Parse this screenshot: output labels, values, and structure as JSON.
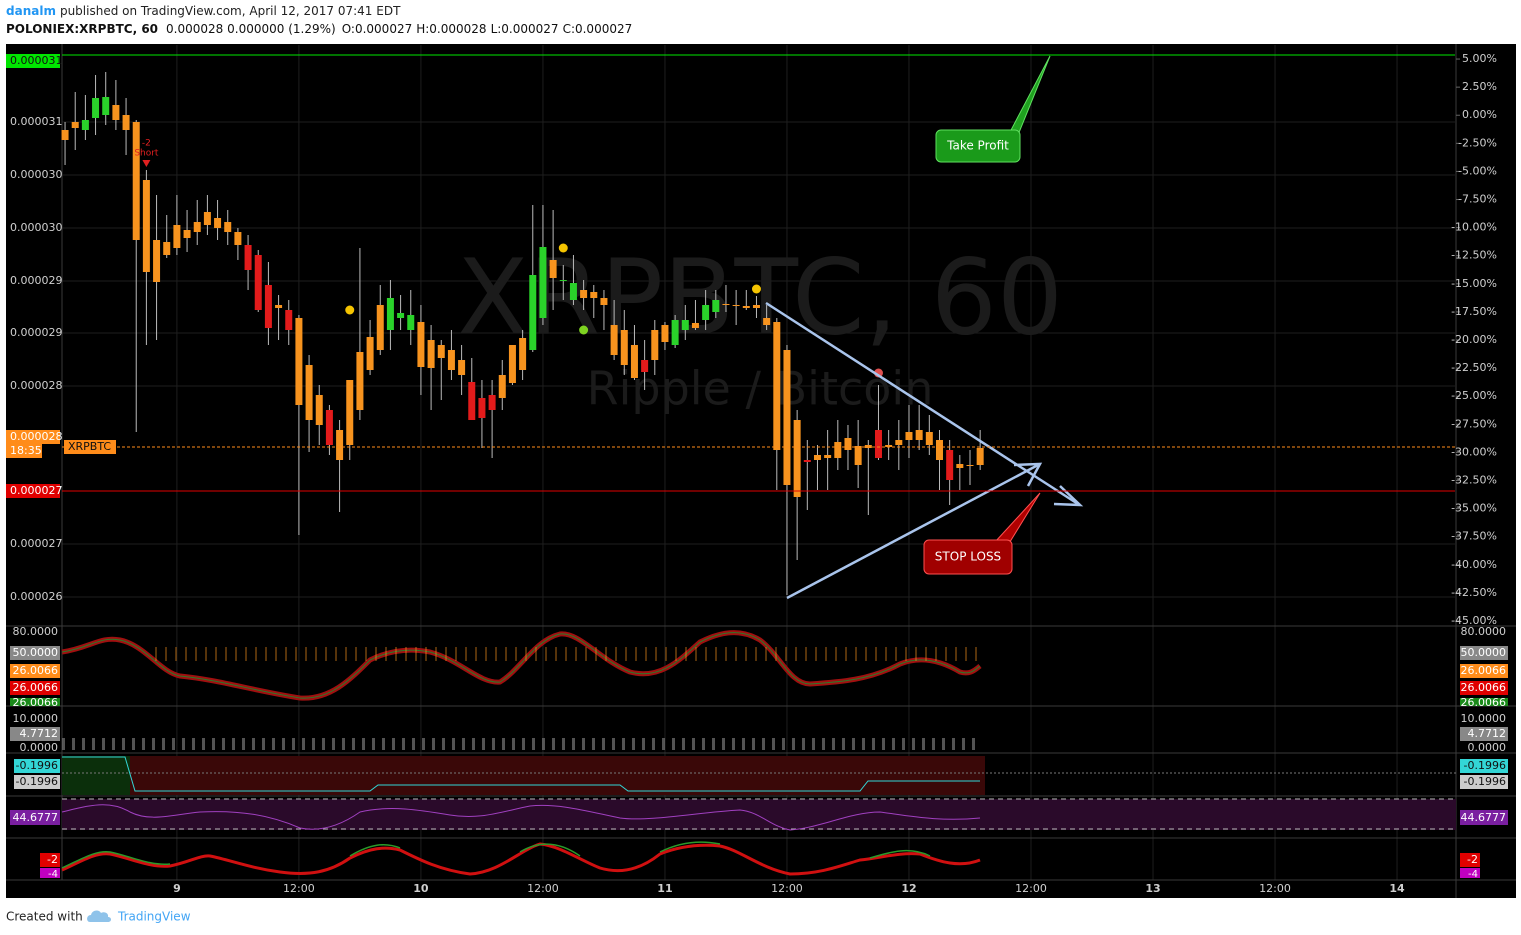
{
  "header": {
    "author": "danalm",
    "published": "published on TradingView.com, April 12, 2017 07:41 EDT"
  },
  "chart_data": {
    "type": "candlestick",
    "symbol": "POLONIEX:XRPBTC, 60",
    "quote": "0.000028 0.000000 (1.29%)",
    "ohlc": [
      "O:0.000027",
      "H:0.000028",
      "L:0.000027",
      "C:0.000027"
    ],
    "watermark": "XRPBTC, 60",
    "watermark_subtitle": "Ripple / Bitcoin",
    "x": [
      13,
      14,
      15,
      16,
      17,
      18,
      19,
      20,
      21,
      22,
      23,
      24,
      25,
      26,
      27,
      28,
      29,
      30,
      31,
      32,
      33,
      34,
      35,
      36,
      37,
      38,
      39,
      40,
      41,
      42,
      43,
      44,
      45,
      46,
      47,
      48,
      49,
      50,
      51,
      52,
      53,
      54,
      55,
      56,
      57,
      58,
      59,
      60,
      61,
      62,
      63,
      64,
      65,
      66,
      67,
      68,
      69,
      70,
      71,
      72,
      73,
      74,
      75,
      76,
      77,
      78,
      79,
      80,
      81,
      82,
      83,
      84,
      85,
      86,
      87,
      88,
      89,
      90,
      91,
      92,
      93,
      94,
      95,
      96,
      97,
      98,
      99,
      100,
      101,
      102,
      103
    ],
    "open": [
      3.062e-05,
      3.074e-05,
      3.072e-05,
      3.084e-05,
      3.087e-05,
      3.097e-05,
      3.087e-05,
      3.08e-05,
      3.022e-05,
      2.962e-05,
      2.96e-05,
      2.977e-05,
      2.964e-05,
      2.97e-05,
      2.99e-05,
      2.984e-05,
      2.98e-05,
      2.97e-05,
      2.957e-05,
      2.947e-05,
      2.917e-05,
      2.894e-05,
      2.892e-05,
      2.884e-05,
      2.837e-05,
      2.807e-05,
      2.792e-05,
      2.772e-05,
      2.757e-05,
      2.792e-05,
      2.832e-05,
      2.852e-05,
      2.872e-05,
      2.884e-05,
      2.872e-05,
      2.88e-05,
      2.862e-05,
      2.857e-05,
      2.852e-05,
      2.842e-05,
      2.82e-05,
      2.804e-05,
      2.807e-05,
      2.804e-05,
      2.819e-05,
      2.832e-05,
      2.852e-05,
      2.884e-05,
      2.942e-05,
      2.922e-05,
      2.902e-05,
      2.912e-05,
      2.904e-05,
      2.904e-05,
      2.877e-05,
      2.872e-05,
      2.857e-05,
      2.842e-05,
      2.842e-05,
      2.86e-05,
      2.857e-05,
      2.872e-05,
      2.879e-05,
      2.882e-05,
      2.89e-05,
      2.897e-05,
      2.896e-05,
      2.896e-05,
      2.894e-05,
      2.884e-05,
      2.88e-05,
      2.852e-05,
      2.782e-05,
      2.742e-05,
      2.747e-05,
      2.744e-05,
      2.76e-05,
      2.764e-05,
      2.756e-05,
      2.754e-05,
      2.772e-05,
      2.755e-05,
      2.757e-05,
      2.762e-05,
      2.772e-05,
      2.77e-05,
      2.762e-05,
      2.752e-05,
      2.734e-05,
      2.736e-05,
      2.754e-05
    ],
    "high": [
      3.08e-05,
      3.11e-05,
      3.107e-05,
      3.127e-05,
      3.13e-05,
      3.122e-05,
      3.104e-05,
      3.082e-05,
      3.032e-05,
      3.007e-05,
      2.987e-05,
      3.007e-05,
      2.992e-05,
      3.002e-05,
      3.007e-05,
      3.002e-05,
      2.992e-05,
      2.974e-05,
      2.967e-05,
      2.952e-05,
      2.94e-05,
      2.907e-05,
      2.902e-05,
      2.887e-05,
      2.847e-05,
      2.817e-05,
      2.797e-05,
      2.782e-05,
      2.822e-05,
      2.954e-05,
      2.882e-05,
      2.917e-05,
      2.922e-05,
      2.907e-05,
      2.912e-05,
      2.897e-05,
      2.877e-05,
      2.862e-05,
      2.872e-05,
      2.857e-05,
      2.844e-05,
      2.822e-05,
      2.822e-05,
      2.842e-05,
      2.857e-05,
      2.872e-05,
      2.997e-05,
      2.997e-05,
      2.992e-05,
      2.937e-05,
      2.947e-05,
      2.922e-05,
      2.917e-05,
      2.912e-05,
      2.902e-05,
      2.892e-05,
      2.877e-05,
      2.862e-05,
      2.882e-05,
      2.88e-05,
      2.887e-05,
      2.897e-05,
      2.902e-05,
      2.912e-05,
      2.912e-05,
      2.917e-05,
      2.912e-05,
      2.912e-05,
      2.906e-05,
      2.897e-05,
      2.884e-05,
      2.857e-05,
      2.792e-05,
      2.762e-05,
      2.757e-05,
      2.772e-05,
      2.782e-05,
      2.777e-05,
      2.782e-05,
      2.762e-05,
      2.817e-05,
      2.772e-05,
      2.782e-05,
      2.797e-05,
      2.797e-05,
      2.787e-05,
      2.772e-05,
      2.762e-05,
      2.747e-05,
      2.752e-05,
      2.772e-05
    ],
    "low": [
      3.037e-05,
      3.052e-05,
      3.062e-05,
      3.067e-05,
      3.077e-05,
      3.072e-05,
      3.047e-05,
      2.77e-05,
      2.857e-05,
      2.862e-05,
      2.944e-05,
      2.947e-05,
      2.95e-05,
      2.957e-05,
      2.967e-05,
      2.962e-05,
      2.957e-05,
      2.942e-05,
      2.912e-05,
      2.89e-05,
      2.857e-05,
      2.862e-05,
      2.857e-05,
      2.667e-05,
      2.75e-05,
      2.757e-05,
      2.747e-05,
      2.69e-05,
      2.742e-05,
      2.782e-05,
      2.827e-05,
      2.847e-05,
      2.852e-05,
      2.872e-05,
      2.857e-05,
      2.807e-05,
      2.792e-05,
      2.802e-05,
      2.822e-05,
      2.807e-05,
      2.782e-05,
      2.754e-05,
      2.744e-05,
      2.792e-05,
      2.817e-05,
      2.822e-05,
      2.85e-05,
      2.877e-05,
      2.892e-05,
      2.902e-05,
      2.897e-05,
      2.892e-05,
      2.884e-05,
      2.872e-05,
      2.842e-05,
      2.827e-05,
      2.822e-05,
      2.812e-05,
      2.827e-05,
      2.852e-05,
      2.854e-05,
      2.862e-05,
      2.872e-05,
      2.872e-05,
      2.884e-05,
      2.89e-05,
      2.877e-05,
      2.892e-05,
      2.884e-05,
      2.872e-05,
      2.712e-05,
      2.607e-05,
      2.642e-05,
      2.692e-05,
      2.712e-05,
      2.712e-05,
      2.732e-05,
      2.732e-05,
      2.714e-05,
      2.687e-05,
      2.742e-05,
      2.742e-05,
      2.732e-05,
      2.744e-05,
      2.752e-05,
      2.747e-05,
      2.712e-05,
      2.697e-05,
      2.712e-05,
      2.717e-05,
      2.732e-05
    ],
    "close": [
      3.072e-05,
      3.08e-05,
      3.082e-05,
      3.104e-05,
      3.105e-05,
      3.082e-05,
      3.072e-05,
      2.962e-05,
      2.93e-05,
      2.92e-05,
      2.947e-05,
      2.954e-05,
      2.972e-05,
      2.98e-05,
      2.977e-05,
      2.974e-05,
      2.97e-05,
      2.957e-05,
      2.932e-05,
      2.892e-05,
      2.874e-05,
      2.897e-05,
      2.872e-05,
      2.797e-05,
      2.782e-05,
      2.777e-05,
      2.757e-05,
      2.742e-05,
      2.822e-05,
      2.85e-05,
      2.865e-05,
      2.897e-05,
      2.904e-05,
      2.889e-05,
      2.887e-05,
      2.835e-05,
      2.834e-05,
      2.844e-05,
      2.832e-05,
      2.827e-05,
      2.782e-05,
      2.784e-05,
      2.792e-05,
      2.827e-05,
      2.857e-05,
      2.864e-05,
      2.927e-05,
      2.955e-05,
      2.924e-05,
      2.922e-05,
      2.919e-05,
      2.904e-05,
      2.91e-05,
      2.897e-05,
      2.847e-05,
      2.837e-05,
      2.824e-05,
      2.83e-05,
      2.872e-05,
      2.877e-05,
      2.882e-05,
      2.882e-05,
      2.874e-05,
      2.897e-05,
      2.902e-05,
      2.898e-05,
      2.897e-05,
      2.894e-05,
      2.897e-05,
      2.877e-05,
      2.752e-05,
      2.717e-05,
      2.705e-05,
      2.74e-05,
      2.742e-05,
      2.747e-05,
      2.744e-05,
      2.752e-05,
      2.737e-05,
      2.757e-05,
      2.744e-05,
      2.757e-05,
      2.762e-05,
      2.77e-05,
      2.762e-05,
      2.757e-05,
      2.742e-05,
      2.722e-05,
      2.738e-05,
      2.737e-05,
      2.737e-05
    ],
    "colors": [
      "#f7931e",
      "#f7931e",
      "#2ad22a",
      "#2ad22a",
      "#2ad22a",
      "#f7931e",
      "#f7931e",
      "#f7931e",
      "#f7931e",
      "#f7931e",
      "#f7931e",
      "#f7931e",
      "#f7931e",
      "#f7931e",
      "#f7931e",
      "#f7931e",
      "#f7931e",
      "#f7931e",
      "#e31b1b",
      "#e31b1b",
      "#e31b1b",
      "#f7931e",
      "#e31b1b",
      "#f7931e",
      "#f7931e",
      "#f7931e",
      "#e31b1b",
      "#f7931e",
      "#f7931e",
      "#f7931e",
      "#f7931e",
      "#f7931e",
      "#2ad22a",
      "#2ad22a",
      "#2ad22a",
      "#f7931e",
      "#f7931e",
      "#f7931e",
      "#f7931e",
      "#f7931e",
      "#e31b1b",
      "#e31b1b",
      "#e31b1b",
      "#f7931e",
      "#f7931e",
      "#f7931e",
      "#2ad22a",
      "#2ad22a",
      "#f7931e",
      "#2ad22a",
      "#2ad22a",
      "#f7931e",
      "#f7931e",
      "#f7931e",
      "#f7931e",
      "#f7931e",
      "#f7931e",
      "#e31b1b",
      "#f7931e",
      "#f7931e",
      "#2ad22a",
      "#2ad22a",
      "#f7931e",
      "#2ad22a",
      "#2ad22a",
      "#f7931e",
      "#f7931e",
      "#f7931e",
      "#f7931e",
      "#f7931e",
      "#f7931e",
      "#f7931e",
      "#f7931e",
      "#e31b1b",
      "#f7931e",
      "#f7931e",
      "#f7931e",
      "#f7931e",
      "#f7931e",
      "#f7931e",
      "#e31b1b",
      "#f7931e",
      "#f7931e",
      "#f7931e",
      "#f7931e",
      "#f7931e",
      "#f7931e",
      "#e31b1b",
      "#f7931e",
      "#f7931e",
      "#f7931e"
    ],
    "xlim": [
      12.7,
      149.7
    ],
    "xticks": [
      {
        "value": 24,
        "label": "9"
      },
      {
        "value": 36,
        "label": "12:00"
      },
      {
        "value": 48,
        "label": "10"
      },
      {
        "value": 60,
        "label": "12:00"
      },
      {
        "value": 72,
        "label": "11"
      },
      {
        "value": 84,
        "label": "12:00"
      },
      {
        "value": 96,
        "label": "12"
      },
      {
        "value": 108,
        "label": "12:00"
      },
      {
        "value": 120,
        "label": "13"
      },
      {
        "value": 132,
        "label": "12:00"
      },
      {
        "value": 144,
        "label": "14"
      }
    ],
    "ylim": [
      2.577e-05,
      3.157e-05
    ],
    "yticks": [
      {
        "value": 3.08e-05,
        "label": "0.000031"
      },
      {
        "value": 3.027e-05,
        "label": "0.000030"
      },
      {
        "value": 2.974e-05,
        "label": "0.000030"
      },
      {
        "value": 2.921e-05,
        "label": "0.000029"
      },
      {
        "value": 2.869e-05,
        "label": "0.000029"
      },
      {
        "value": 2.816e-05,
        "label": "0.000028"
      },
      {
        "value": 2.658e-05,
        "label": "0.000027"
      },
      {
        "value": 2.605e-05,
        "label": "0.000026"
      }
    ],
    "y2lim": [
      -45.36,
      6.25
    ],
    "y2ticks": [
      {
        "value": 5,
        "label": "5.00%"
      },
      {
        "value": 2.5,
        "label": "2.50%"
      },
      {
        "value": 0,
        "label": "0.00%"
      },
      {
        "value": -2.5,
        "label": "-2.50%"
      },
      {
        "value": -5,
        "label": "-5.00%"
      },
      {
        "value": -7.5,
        "label": "-7.50%"
      },
      {
        "value": -10,
        "label": "-10.00%"
      },
      {
        "value": -12.5,
        "label": "-12.50%"
      },
      {
        "value": -15,
        "label": "-15.00%"
      },
      {
        "value": -17.5,
        "label": "-17.50%"
      },
      {
        "value": -20,
        "label": "-20.00%"
      },
      {
        "value": -22.5,
        "label": "-22.50%"
      },
      {
        "value": -25,
        "label": "-25.00%"
      },
      {
        "value": -27.5,
        "label": "-27.50%"
      },
      {
        "value": -30,
        "label": "-30.00%"
      },
      {
        "value": -32.5,
        "label": "-32.50%"
      },
      {
        "value": -35,
        "label": "-35.00%"
      },
      {
        "value": -37.5,
        "label": "-37.50%"
      },
      {
        "value": -40,
        "label": "-40.00%"
      },
      {
        "value": -42.5,
        "label": "-42.50%"
      },
      {
        "value": -45,
        "label": "-45.00%"
      }
    ],
    "price_lines": [
      {
        "value": 3.147e-05,
        "label": "0.000031",
        "color": "#00e600"
      },
      {
        "value": 2.755e-05,
        "label": "0.000028",
        "color": "#ff8c1a",
        "tag": "XRPBTC",
        "countdown": "18:35"
      },
      {
        "value": 2.711e-05,
        "label": "0.000027",
        "color": "#e00000"
      }
    ],
    "signals": [
      {
        "x": 41,
        "y": 2.892e-05,
        "color": "#f5c400"
      },
      {
        "x": 62,
        "y": 2.954e-05,
        "color": "#f5c400"
      },
      {
        "x": 64,
        "y": 2.872e-05,
        "color": "#7ed321"
      },
      {
        "x": 81,
        "y": 2.913e-05,
        "color": "#f5c400"
      },
      {
        "x": 93,
        "y": 2.829e-05,
        "color": "#e05050"
      }
    ],
    "short_signal": {
      "x": 21,
      "count": "-2",
      "label": "Short"
    },
    "annotations": [
      "Take Profit",
      "STOP LOSS"
    ]
  },
  "indicators": {
    "panel1": [
      "80.0000",
      "50.0000",
      "26.0066",
      "26.0066",
      "26.0066"
    ],
    "panel2": [
      "10.0000",
      "4.7712",
      "0.0000"
    ],
    "panel3": [
      "-0.1996",
      "-0.1996"
    ],
    "panel4": [
      "44.6777"
    ],
    "panel5": [
      "-2",
      "-4"
    ]
  },
  "footer": {
    "created": "Created with",
    "brand": "TradingView"
  }
}
